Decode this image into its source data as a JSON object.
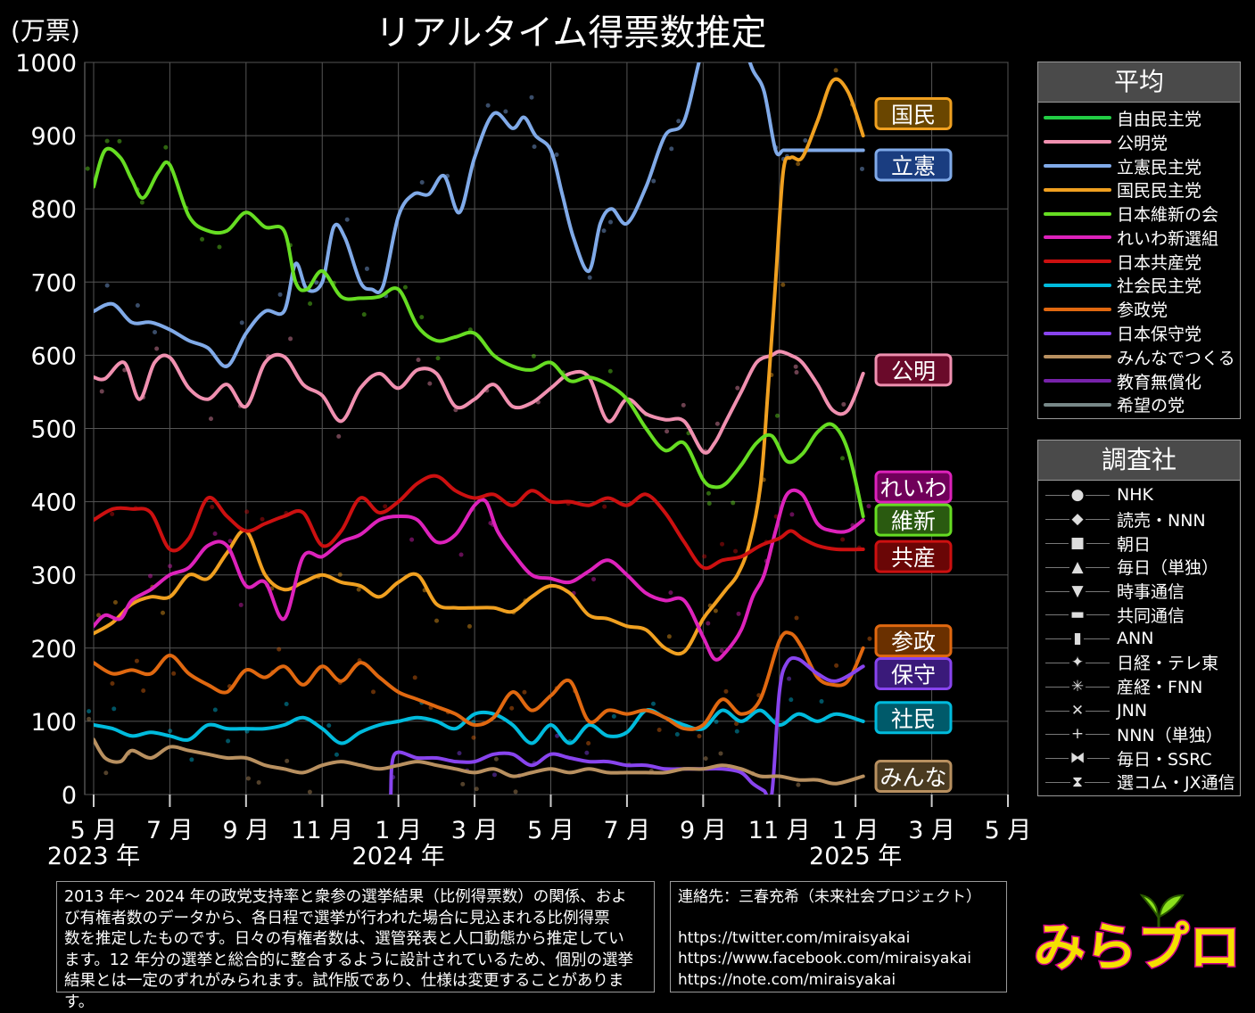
{
  "chart_data": {
    "type": "line",
    "title": "リアルタイム得票数推定",
    "unit_label": "(万票)",
    "ylim": [
      0,
      1000
    ],
    "y_ticks": [
      "0",
      "100",
      "200",
      "300",
      "400",
      "500",
      "600",
      "700",
      "800",
      "900",
      "1000"
    ],
    "xlim_months": [
      0,
      24
    ],
    "x_ticks": [
      {
        "m": 0,
        "label": "5 月"
      },
      {
        "m": 2,
        "label": "7 月"
      },
      {
        "m": 4,
        "label": "9 月"
      },
      {
        "m": 6,
        "label": "11 月"
      },
      {
        "m": 8,
        "label": "1 月"
      },
      {
        "m": 10,
        "label": "3 月"
      },
      {
        "m": 12,
        "label": "5 月"
      },
      {
        "m": 14,
        "label": "7 月"
      },
      {
        "m": 16,
        "label": "9 月"
      },
      {
        "m": 18,
        "label": "11 月"
      },
      {
        "m": 20,
        "label": "1 月"
      },
      {
        "m": 22,
        "label": "3 月"
      },
      {
        "m": 24,
        "label": "5 月"
      }
    ],
    "year_labels": [
      {
        "m": 0,
        "label": "2023 年"
      },
      {
        "m": 8,
        "label": "2024 年"
      },
      {
        "m": 20,
        "label": "2025 年"
      }
    ],
    "grid": true,
    "legend_placement": "right",
    "series": [
      {
        "name": "自由民主党",
        "color": "#22cc44",
        "x": [],
        "y": []
      },
      {
        "name": "公明党",
        "color": "#f090b0",
        "x": [
          0,
          0.3,
          0.8,
          1.2,
          1.6,
          2.0,
          2.5,
          3.0,
          3.5,
          4.0,
          4.5,
          5.0,
          5.5,
          6.0,
          6.5,
          7.0,
          7.5,
          8.0,
          8.5,
          9.0,
          9.5,
          10.0,
          10.5,
          11.0,
          11.5,
          12.0,
          12.5,
          13.0,
          13.5,
          14.0,
          14.5,
          15.0,
          15.5,
          16.0,
          16.3,
          16.6,
          17.0,
          17.4,
          17.8,
          18.0,
          18.3,
          18.6,
          19.0,
          19.4,
          19.8,
          20.2
        ],
        "y": [
          570,
          568,
          590,
          540,
          590,
          597,
          555,
          540,
          560,
          530,
          590,
          598,
          560,
          545,
          510,
          555,
          575,
          555,
          580,
          575,
          530,
          540,
          560,
          530,
          535,
          555,
          575,
          570,
          510,
          540,
          520,
          512,
          510,
          468,
          480,
          510,
          550,
          590,
          600,
          605,
          600,
          590,
          560,
          525,
          525,
          575
        ]
      },
      {
        "name": "立憲民主党",
        "color": "#80aae8",
        "x": [
          0,
          0.5,
          1.0,
          1.5,
          2.0,
          2.5,
          3.0,
          3.5,
          4.0,
          4.5,
          5.0,
          5.3,
          5.6,
          6.0,
          6.3,
          6.6,
          7.0,
          7.3,
          7.6,
          8.0,
          8.4,
          8.8,
          9.2,
          9.6,
          10.0,
          10.5,
          11.0,
          11.3,
          11.6,
          12.0,
          12.3,
          12.6,
          13.0,
          13.3,
          13.6,
          14.0,
          14.5,
          15.0,
          15.5,
          16.0,
          16.5,
          17.0,
          17.3,
          17.6,
          17.9,
          18.1,
          18.3,
          18.8,
          19.2,
          19.6,
          20.2
        ],
        "y": [
          660,
          670,
          645,
          645,
          635,
          620,
          610,
          585,
          630,
          660,
          660,
          725,
          690,
          700,
          775,
          760,
          700,
          690,
          695,
          790,
          820,
          820,
          845,
          795,
          870,
          930,
          910,
          925,
          900,
          880,
          820,
          760,
          715,
          780,
          800,
          780,
          830,
          900,
          920,
          1020,
          1060,
          1030,
          990,
          960,
          880,
          880,
          880,
          880,
          880,
          880,
          880
        ]
      },
      {
        "name": "国民民主党",
        "color": "#f0a020",
        "x": [
          0,
          0.5,
          1.0,
          1.5,
          2.0,
          2.5,
          3.0,
          3.5,
          4.0,
          4.5,
          5.0,
          5.5,
          6.0,
          6.5,
          7.0,
          7.5,
          8.0,
          8.5,
          9.0,
          9.5,
          10.0,
          10.5,
          11.0,
          11.5,
          12.0,
          12.5,
          13.0,
          13.5,
          14.0,
          14.5,
          15.0,
          15.5,
          16.0,
          16.3,
          16.6,
          16.9,
          17.2,
          17.5,
          17.7,
          17.9,
          18.1,
          18.3,
          18.6,
          19.0,
          19.4,
          19.8,
          20.2
        ],
        "y": [
          220,
          235,
          260,
          270,
          270,
          300,
          295,
          330,
          360,
          300,
          280,
          290,
          300,
          290,
          285,
          270,
          290,
          300,
          260,
          255,
          255,
          255,
          250,
          270,
          285,
          275,
          245,
          240,
          230,
          225,
          200,
          195,
          240,
          260,
          280,
          300,
          340,
          420,
          550,
          700,
          850,
          870,
          870,
          920,
          975,
          960,
          900
        ]
      },
      {
        "name": "日本維新の会",
        "color": "#66dd22",
        "x": [
          0,
          0.3,
          0.7,
          1.0,
          1.3,
          1.7,
          2.0,
          2.5,
          3.0,
          3.5,
          4.0,
          4.5,
          5.0,
          5.3,
          5.6,
          6.0,
          6.5,
          7.0,
          7.5,
          8.0,
          8.5,
          9.0,
          9.5,
          10.0,
          10.5,
          11.0,
          11.5,
          12.0,
          12.5,
          13.0,
          13.5,
          14.0,
          14.5,
          15.0,
          15.5,
          16.0,
          16.3,
          16.6,
          17.0,
          17.4,
          17.8,
          18.2,
          18.6,
          19.0,
          19.4,
          19.8,
          20.2
        ],
        "y": [
          830,
          880,
          870,
          840,
          815,
          850,
          860,
          790,
          770,
          770,
          795,
          775,
          770,
          700,
          690,
          715,
          680,
          678,
          680,
          690,
          640,
          620,
          625,
          630,
          600,
          585,
          580,
          590,
          565,
          570,
          560,
          540,
          500,
          470,
          480,
          430,
          420,
          425,
          450,
          480,
          490,
          455,
          465,
          495,
          505,
          470,
          380
        ]
      },
      {
        "name": "れいわ新選組",
        "color": "#dd22bb",
        "x": [
          0,
          0.3,
          0.7,
          1.0,
          1.5,
          2.0,
          2.5,
          3.0,
          3.5,
          4.0,
          4.5,
          5.0,
          5.5,
          6.0,
          6.5,
          7.0,
          7.5,
          8.0,
          8.5,
          9.0,
          9.5,
          10.0,
          10.3,
          10.6,
          11.0,
          11.5,
          12.0,
          12.5,
          13.0,
          13.5,
          14.0,
          14.5,
          15.0,
          15.5,
          16.0,
          16.3,
          16.6,
          17.0,
          17.3,
          17.6,
          17.9,
          18.2,
          18.6,
          19.0,
          19.4,
          19.8,
          20.2
        ],
        "y": [
          230,
          245,
          240,
          265,
          280,
          300,
          310,
          340,
          340,
          285,
          290,
          240,
          325,
          325,
          345,
          355,
          375,
          380,
          375,
          345,
          355,
          395,
          400,
          360,
          330,
          300,
          295,
          290,
          305,
          320,
          300,
          275,
          265,
          265,
          215,
          185,
          195,
          225,
          270,
          300,
          360,
          410,
          410,
          370,
          360,
          360,
          375
        ]
      },
      {
        "name": "日本共産党",
        "color": "#cc1010",
        "x": [
          0,
          0.5,
          1.0,
          1.5,
          2.0,
          2.5,
          3.0,
          3.5,
          4.0,
          4.5,
          5.0,
          5.5,
          6.0,
          6.5,
          7.0,
          7.5,
          8.0,
          8.5,
          9.0,
          9.5,
          10.0,
          10.5,
          11.0,
          11.5,
          12.0,
          12.5,
          13.0,
          13.5,
          14.0,
          14.5,
          15.0,
          15.5,
          16.0,
          16.5,
          17.0,
          17.5,
          18.0,
          18.3,
          18.6,
          19.0,
          19.5,
          20.2
        ],
        "y": [
          375,
          390,
          390,
          385,
          335,
          350,
          405,
          380,
          360,
          370,
          380,
          385,
          340,
          360,
          405,
          385,
          400,
          425,
          435,
          415,
          405,
          410,
          395,
          415,
          400,
          400,
          395,
          405,
          395,
          410,
          385,
          345,
          310,
          320,
          325,
          340,
          350,
          360,
          350,
          340,
          335,
          335
        ]
      },
      {
        "name": "社会民主党",
        "color": "#00bbdd",
        "x": [
          0,
          0.5,
          1.0,
          1.5,
          2.0,
          2.5,
          3.0,
          3.5,
          4.0,
          4.5,
          5.0,
          5.5,
          6.0,
          6.5,
          7.0,
          7.5,
          8.0,
          8.5,
          9.0,
          9.5,
          10.0,
          10.5,
          11.0,
          11.5,
          12.0,
          12.5,
          13.0,
          13.5,
          14.0,
          14.5,
          15.0,
          15.5,
          16.0,
          16.5,
          17.0,
          17.5,
          18.0,
          18.5,
          19.0,
          19.5,
          20.2
        ],
        "y": [
          95,
          90,
          80,
          85,
          80,
          75,
          95,
          90,
          90,
          90,
          95,
          105,
          90,
          70,
          85,
          95,
          100,
          105,
          100,
          90,
          110,
          110,
          95,
          70,
          95,
          70,
          95,
          80,
          85,
          115,
          105,
          95,
          90,
          115,
          100,
          115,
          95,
          110,
          100,
          110,
          100
        ]
      },
      {
        "name": "参政党",
        "color": "#e06810",
        "x": [
          0,
          0.5,
          1.0,
          1.5,
          2.0,
          2.5,
          3.0,
          3.5,
          4.0,
          4.5,
          5.0,
          5.5,
          6.0,
          6.5,
          7.0,
          7.5,
          8.0,
          8.5,
          9.0,
          9.5,
          10.0,
          10.5,
          11.0,
          11.5,
          12.0,
          12.5,
          13.0,
          13.5,
          14.0,
          14.5,
          15.0,
          15.5,
          16.0,
          16.5,
          17.0,
          17.5,
          18.0,
          18.3,
          18.6,
          19.0,
          19.4,
          19.8,
          20.2
        ],
        "y": [
          180,
          165,
          170,
          165,
          190,
          165,
          150,
          140,
          170,
          160,
          175,
          150,
          175,
          155,
          180,
          160,
          140,
          130,
          120,
          110,
          95,
          105,
          140,
          115,
          135,
          155,
          100,
          115,
          110,
          115,
          105,
          90,
          95,
          130,
          110,
          130,
          210,
          220,
          200,
          160,
          150,
          155,
          200
        ]
      },
      {
        "name": "日本保守党",
        "color": "#8844ee",
        "x": [
          7.8,
          7.9,
          8.5,
          9.0,
          9.5,
          10.0,
          10.5,
          11.0,
          11.5,
          12.0,
          12.5,
          13.0,
          13.5,
          14.0,
          14.5,
          15.0,
          15.5,
          16.0,
          16.5,
          17.0,
          17.3,
          17.6,
          17.8,
          18.0,
          18.2,
          18.5,
          19.0,
          19.5,
          20.2
        ],
        "y": [
          0,
          55,
          50,
          50,
          45,
          45,
          55,
          55,
          40,
          55,
          50,
          45,
          45,
          40,
          40,
          35,
          35,
          35,
          35,
          30,
          15,
          5,
          0,
          140,
          180,
          185,
          165,
          155,
          175
        ]
      },
      {
        "name": "みんなでつくる",
        "color": "#b89060",
        "x": [
          0,
          0.3,
          0.7,
          1.0,
          1.5,
          2.0,
          2.5,
          3.0,
          3.5,
          4.0,
          4.5,
          5.0,
          5.5,
          6.0,
          6.5,
          7.0,
          7.5,
          8.0,
          8.5,
          9.0,
          9.5,
          10.0,
          10.5,
          11.0,
          11.5,
          12.0,
          12.5,
          13.0,
          13.5,
          14.0,
          14.5,
          15.0,
          15.5,
          16.0,
          16.5,
          17.0,
          17.5,
          18.0,
          18.5,
          19.0,
          19.5,
          20.2
        ],
        "y": [
          75,
          50,
          45,
          60,
          50,
          65,
          60,
          55,
          50,
          50,
          40,
          35,
          30,
          40,
          45,
          40,
          35,
          40,
          45,
          40,
          35,
          30,
          35,
          25,
          30,
          35,
          30,
          35,
          30,
          30,
          30,
          30,
          35,
          35,
          40,
          35,
          25,
          25,
          20,
          20,
          15,
          25
        ]
      },
      {
        "name": "教育無償化",
        "color": "#7722aa",
        "x": [],
        "y": []
      },
      {
        "name": "希望の党",
        "color": "#778888",
        "x": [],
        "y": []
      }
    ],
    "end_labels": [
      {
        "text": "国民",
        "value": 930,
        "bg": "#6a4600",
        "border": "#f0a020"
      },
      {
        "text": "立憲",
        "value": 860,
        "bg": "#1a3d80",
        "border": "#80aae8"
      },
      {
        "text": "公明",
        "value": 580,
        "bg": "#6a0a2a",
        "border": "#f090b0"
      },
      {
        "text": "れいわ",
        "value": 420,
        "bg": "#70005a",
        "border": "#dd22bb"
      },
      {
        "text": "維新",
        "value": 375,
        "bg": "#2a5a10",
        "border": "#66dd22"
      },
      {
        "text": "共産",
        "value": 325,
        "bg": "#6a0606",
        "border": "#cc1010"
      },
      {
        "text": "参政",
        "value": 210,
        "bg": "#6a3000",
        "border": "#e06810"
      },
      {
        "text": "保守",
        "value": 165,
        "bg": "#3a1a7a",
        "border": "#8844ee"
      },
      {
        "text": "社民",
        "value": 105,
        "bg": "#005a6a",
        "border": "#00bbdd"
      },
      {
        "text": "みんな",
        "value": 25,
        "bg": "#4a3a20",
        "border": "#b89060"
      }
    ]
  },
  "legend_avg": {
    "title": "平均",
    "items": [
      {
        "label": "自由民主党",
        "color": "#22cc44"
      },
      {
        "label": "公明党",
        "color": "#f090b0"
      },
      {
        "label": "立憲民主党",
        "color": "#80aae8"
      },
      {
        "label": "国民民主党",
        "color": "#f0a020"
      },
      {
        "label": "日本維新の会",
        "color": "#66dd22"
      },
      {
        "label": "れいわ新選組",
        "color": "#dd22bb"
      },
      {
        "label": "日本共産党",
        "color": "#cc1010"
      },
      {
        "label": "社会民主党",
        "color": "#00bbdd"
      },
      {
        "label": "参政党",
        "color": "#e06810"
      },
      {
        "label": "日本保守党",
        "color": "#8844ee"
      },
      {
        "label": "みんなでつくる",
        "color": "#b89060"
      },
      {
        "label": "教育無償化",
        "color": "#7722aa"
      },
      {
        "label": "希望の党",
        "color": "#778888"
      }
    ]
  },
  "legend_polls": {
    "title": "調査社",
    "items": [
      {
        "label": "NHK",
        "icon": "●"
      },
      {
        "label": "読売・NNN",
        "icon": "◆"
      },
      {
        "label": "朝日",
        "icon": "■"
      },
      {
        "label": "毎日（単独）",
        "icon": "▲"
      },
      {
        "label": "時事通信",
        "icon": "▼"
      },
      {
        "label": "共同通信",
        "icon": "▬"
      },
      {
        "label": "ANN",
        "icon": "▮"
      },
      {
        "label": "日経・テレ東",
        "icon": "✦"
      },
      {
        "label": "産経・FNN",
        "icon": "✳"
      },
      {
        "label": "JNN",
        "icon": "✕"
      },
      {
        "label": "NNN（単独）",
        "icon": "+"
      },
      {
        "label": "毎日・SSRC",
        "icon": "⧓"
      },
      {
        "label": "選コム・JX通信",
        "icon": "⧗"
      }
    ]
  },
  "footnote": {
    "lines": [
      "2013 年～ 2024 年の政党支持率と衆参の選挙結果（比例得票数）の関係、およ",
      "び有権者数のデータから、各日程で選挙が行われた場合に見込まれる比例得票",
      "数を推定したものです。日々の有権者数は、選管発表と人口動態から推定してい",
      "ます。12 年分の選挙と総合的に整合するように設計されているため、個別の選挙",
      "結果とは一定のずれがみられます。試作版であり、仕様は変更することがあります。"
    ]
  },
  "contact": {
    "title": "連絡先：三春充希（未来社会プロジェクト）",
    "links": [
      "https://twitter.com/miraisyakai",
      "https://www.facebook.com/miraisyakai",
      "https://note.com/miraisyakai"
    ]
  },
  "logo": {
    "text": "みらプロ",
    "icon": "sprout-logo-icon"
  }
}
